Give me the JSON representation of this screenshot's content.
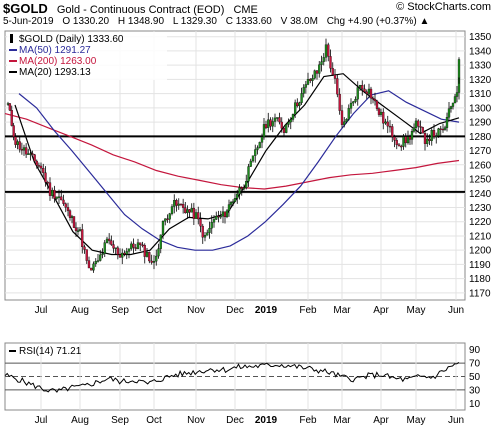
{
  "header": {
    "symbol": "$GOLD",
    "name": "Gold - Continuous Contract (EOD)",
    "exchange": "CME",
    "brand": "© StockCharts.com",
    "date": "5-Jun-2019",
    "open": "O 1330.20",
    "high": "H 1348.90",
    "low": "L 1329.30",
    "close": "C 1333.60",
    "volume": "V 38.0M",
    "change": "Chg +4.90 (+0.37%)",
    "change_icon": "triangle-up-icon"
  },
  "chart_data": [
    {
      "type": "candlestick",
      "legend": [
        {
          "label": "$GOLD (Daily) 1333.60",
          "color": "#000000",
          "style": "candle"
        },
        {
          "label": "MA(50) 1291.27",
          "color": "#2b2b9a",
          "style": "line"
        },
        {
          "label": "MA(200) 1263.00",
          "color": "#c4163d",
          "style": "line"
        },
        {
          "label": "MA(20) 1293.13",
          "color": "#000000",
          "style": "line"
        }
      ],
      "x_labels": [
        "Jul",
        "Aug",
        "Sep",
        "Oct",
        "Nov",
        "Dec",
        "2019",
        "Feb",
        "Mar",
        "Apr",
        "May",
        "Jun"
      ],
      "y_ticks": [
        1170,
        1180,
        1190,
        1200,
        1210,
        1220,
        1230,
        1240,
        1250,
        1260,
        1270,
        1280,
        1290,
        1300,
        1310,
        1320,
        1330,
        1340,
        1350
      ],
      "ylim": [
        1165,
        1354
      ],
      "horizontal_lines": [
        1280,
        1241
      ],
      "price_path": [
        {
          "m": "Jun",
          "v": 1302
        },
        {
          "m": "Jun",
          "v": 1276
        },
        {
          "m": "Jul",
          "v": 1258
        },
        {
          "m": "Jul",
          "v": 1241
        },
        {
          "m": "Jul",
          "v": 1238
        },
        {
          "m": "Jul",
          "v": 1226
        },
        {
          "m": "Aug",
          "v": 1212
        },
        {
          "m": "Aug",
          "v": 1185
        },
        {
          "m": "Aug",
          "v": 1192
        },
        {
          "m": "Aug",
          "v": 1206
        },
        {
          "m": "Sep",
          "v": 1197
        },
        {
          "m": "Sep",
          "v": 1201
        },
        {
          "m": "Sep",
          "v": 1204
        },
        {
          "m": "Sep",
          "v": 1197
        },
        {
          "m": "Oct",
          "v": 1190
        },
        {
          "m": "Oct",
          "v": 1218
        },
        {
          "m": "Oct",
          "v": 1232
        },
        {
          "m": "Oct",
          "v": 1231
        },
        {
          "m": "Nov",
          "v": 1224
        },
        {
          "m": "Nov",
          "v": 1208
        },
        {
          "m": "Nov",
          "v": 1222
        },
        {
          "m": "Nov",
          "v": 1224
        },
        {
          "m": "Dec",
          "v": 1238
        },
        {
          "m": "Dec",
          "v": 1247
        },
        {
          "m": "Dec",
          "v": 1264
        },
        {
          "m": "Dec",
          "v": 1281
        },
        {
          "m": "2019",
          "v": 1289
        },
        {
          "m": "2019",
          "v": 1292
        },
        {
          "m": "2019",
          "v": 1285
        },
        {
          "m": "2019",
          "v": 1298
        },
        {
          "m": "Feb",
          "v": 1318
        },
        {
          "m": "Feb",
          "v": 1325
        },
        {
          "m": "Feb",
          "v": 1342
        },
        {
          "m": "Feb",
          "v": 1318
        },
        {
          "m": "Mar",
          "v": 1286
        },
        {
          "m": "Mar",
          "v": 1302
        },
        {
          "m": "Mar",
          "v": 1316
        },
        {
          "m": "Mar",
          "v": 1312
        },
        {
          "m": "Apr",
          "v": 1294
        },
        {
          "m": "Apr",
          "v": 1284
        },
        {
          "m": "Apr",
          "v": 1275
        },
        {
          "m": "Apr",
          "v": 1278
        },
        {
          "m": "May",
          "v": 1288
        },
        {
          "m": "May",
          "v": 1278
        },
        {
          "m": "May",
          "v": 1282
        },
        {
          "m": "May",
          "v": 1283
        },
        {
          "m": "Jun",
          "v": 1318
        },
        {
          "m": "Jun",
          "v": 1334
        }
      ],
      "ma50": [
        1310,
        1300,
        1284,
        1270,
        1255,
        1240,
        1225,
        1215,
        1207,
        1202,
        1200,
        1200,
        1203,
        1210,
        1220,
        1232,
        1245,
        1262,
        1280,
        1296,
        1309,
        1312,
        1304,
        1298,
        1292,
        1290
      ],
      "ma200": [
        1296,
        1292,
        1286,
        1280,
        1274,
        1267,
        1262,
        1256,
        1252,
        1249,
        1246,
        1244,
        1243,
        1245,
        1248,
        1251,
        1253,
        1254,
        1256,
        1258,
        1261,
        1263
      ],
      "ma20": [
        1302,
        1262,
        1238,
        1213,
        1200,
        1197,
        1197,
        1200,
        1215,
        1223,
        1222,
        1226,
        1247,
        1270,
        1288,
        1302,
        1322,
        1324,
        1312,
        1302,
        1292,
        1282,
        1289,
        1293
      ]
    },
    {
      "type": "line",
      "legend": [
        {
          "label": "RSI(14) 71.21",
          "color": "#000000"
        }
      ],
      "x_labels": [
        "Jul",
        "Aug",
        "Sep",
        "Oct",
        "Nov",
        "Dec",
        "2019",
        "Feb",
        "Mar",
        "Apr",
        "May",
        "Jun"
      ],
      "y_ticks": [
        10,
        30,
        50,
        70,
        90
      ],
      "ylim": [
        0,
        100
      ],
      "reference_lines": [
        70,
        50,
        30
      ],
      "values": [
        52,
        46,
        38,
        31,
        27,
        33,
        35,
        41,
        47,
        42,
        45,
        39,
        46,
        52,
        55,
        58,
        61,
        60,
        64,
        65,
        66,
        68,
        66,
        63,
        60,
        56,
        49,
        46,
        51,
        53,
        47,
        45,
        50,
        49,
        61,
        71
      ]
    }
  ]
}
